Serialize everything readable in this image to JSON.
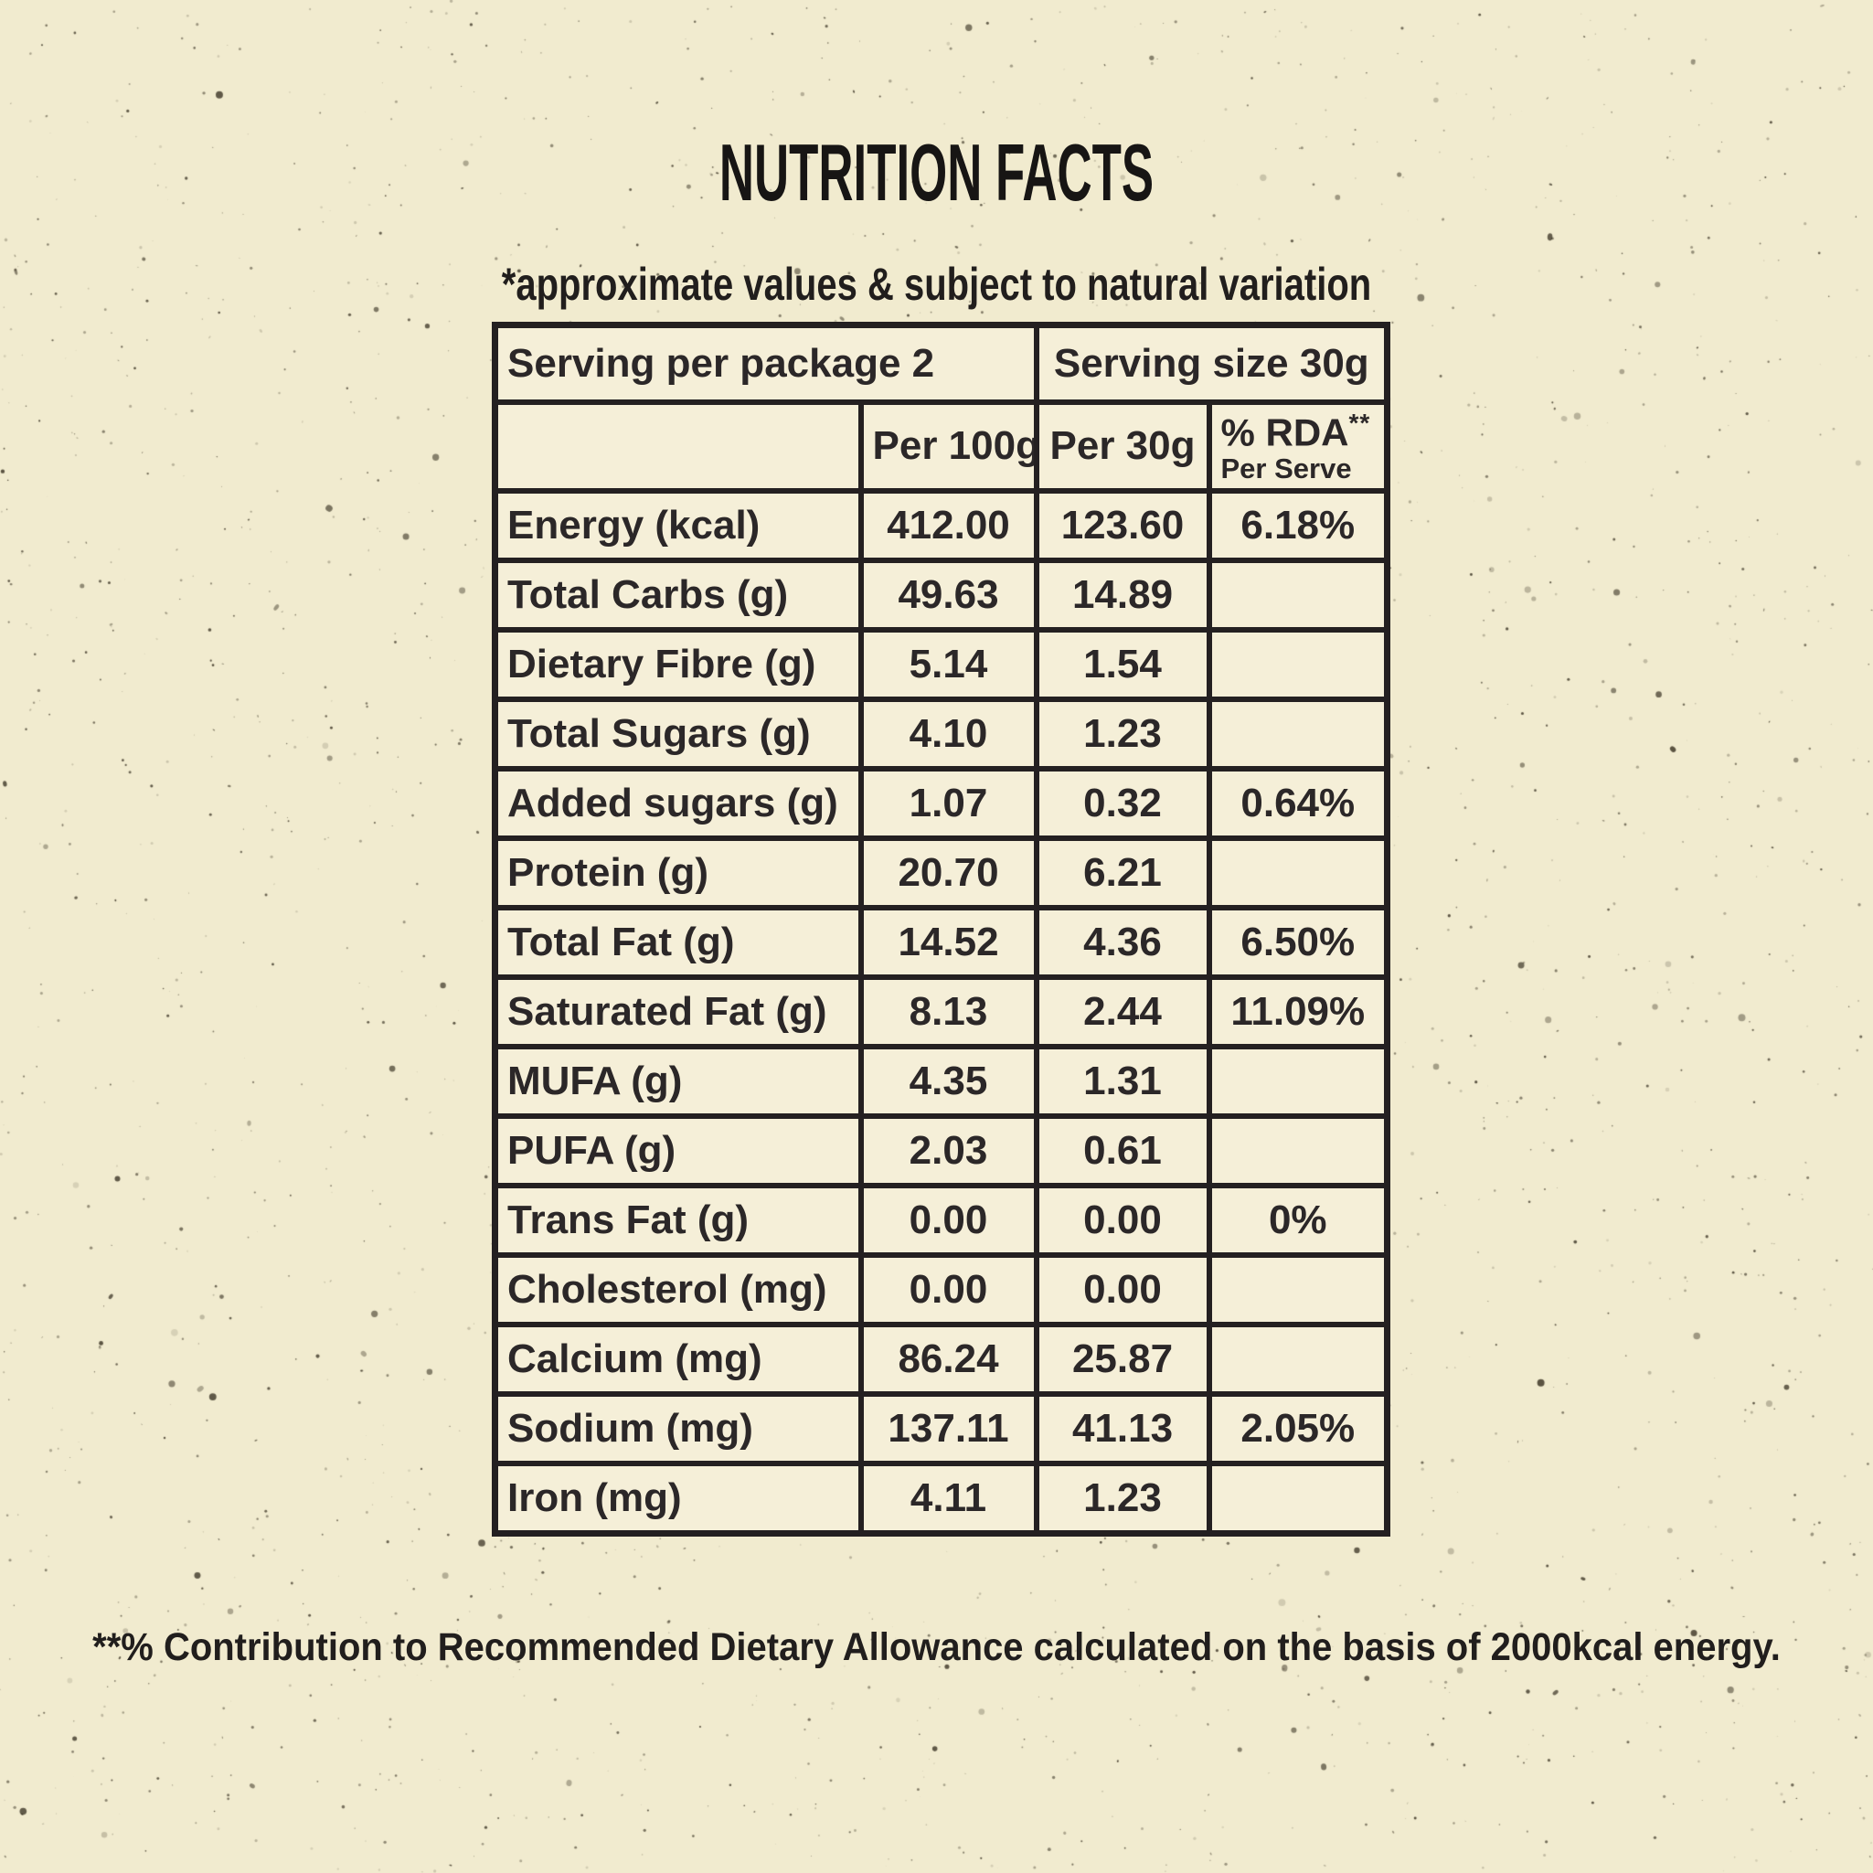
{
  "title": "NUTRITION FACTS",
  "subtitle": "*approximate values & subject to natural variation",
  "table": {
    "serving_per_package": "Serving per package 2",
    "serving_size": "Serving size 30g",
    "columns": {
      "per_100g": "Per 100g",
      "per_30g": "Per 30g",
      "rda_main": "% RDA",
      "rda_sup": "**",
      "rda_sub": "Per Serve"
    },
    "rows": [
      {
        "label": "Energy (kcal)",
        "per_100g": "412.00",
        "per_30g": "123.60",
        "rda": "6.18%"
      },
      {
        "label": "Total Carbs (g)",
        "per_100g": "49.63",
        "per_30g": "14.89",
        "rda": ""
      },
      {
        "label": "Dietary Fibre (g)",
        "per_100g": "5.14",
        "per_30g": "1.54",
        "rda": ""
      },
      {
        "label": "Total Sugars (g)",
        "per_100g": "4.10",
        "per_30g": "1.23",
        "rda": ""
      },
      {
        "label": "Added sugars (g)",
        "per_100g": "1.07",
        "per_30g": "0.32",
        "rda": "0.64%"
      },
      {
        "label": "Protein (g)",
        "per_100g": "20.70",
        "per_30g": "6.21",
        "rda": ""
      },
      {
        "label": "Total Fat (g)",
        "per_100g": "14.52",
        "per_30g": "4.36",
        "rda": "6.50%"
      },
      {
        "label": "Saturated Fat (g)",
        "per_100g": "8.13",
        "per_30g": "2.44",
        "rda": "11.09%"
      },
      {
        "label": "MUFA (g)",
        "per_100g": "4.35",
        "per_30g": "1.31",
        "rda": ""
      },
      {
        "label": "PUFA (g)",
        "per_100g": "2.03",
        "per_30g": "0.61",
        "rda": ""
      },
      {
        "label": "Trans Fat (g)",
        "per_100g": "0.00",
        "per_30g": "0.00",
        "rda": "0%"
      },
      {
        "label": "Cholesterol (mg)",
        "per_100g": "0.00",
        "per_30g": "0.00",
        "rda": ""
      },
      {
        "label": "Calcium (mg)",
        "per_100g": "86.24",
        "per_30g": "25.87",
        "rda": ""
      },
      {
        "label": "Sodium (mg)",
        "per_100g": "137.11",
        "per_30g": "41.13",
        "rda": "2.05%"
      },
      {
        "label": "Iron (mg)",
        "per_100g": "4.11",
        "per_30g": "1.23",
        "rda": ""
      }
    ]
  },
  "footnote": "**% Contribution to Recommended Dietary Allowance calculated on the basis of 2000kcal energy.",
  "colors": {
    "background": "#F1EBCF",
    "cell_cream": "#F5EFD8",
    "cell_orange": "#F8C07C",
    "ink": "#242021"
  }
}
